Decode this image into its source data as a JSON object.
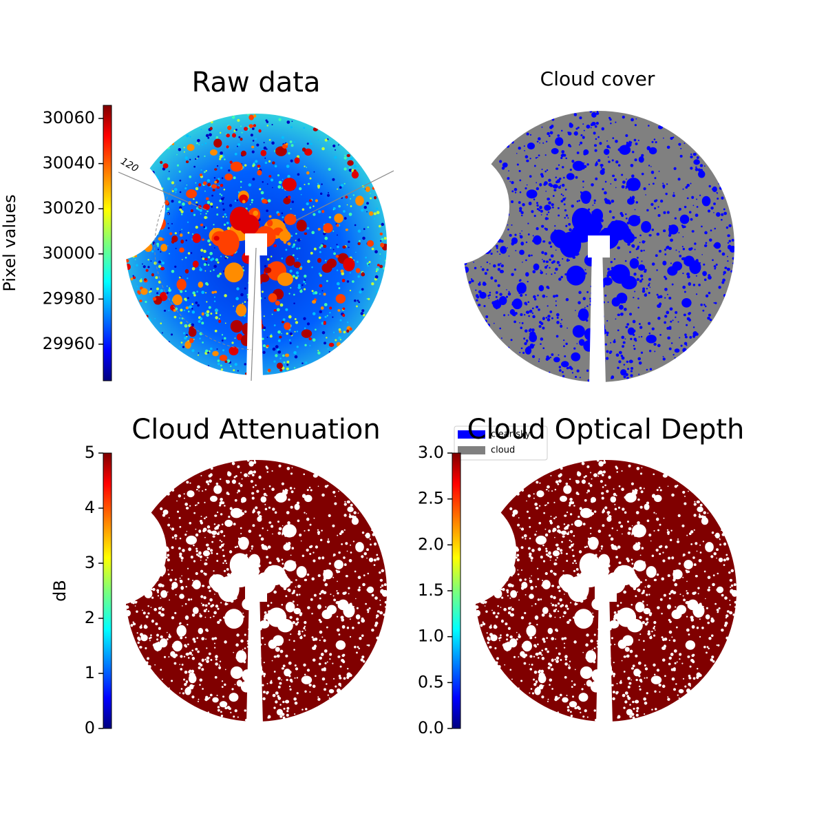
{
  "chart_data": [
    {
      "type": "image",
      "title": "Raw data",
      "colormap": "jet",
      "colorbar_label": "Pixel values",
      "ylim": [
        29943.8,
        30065.8
      ],
      "yticks": [
        29960,
        29980,
        30000,
        30020,
        30040,
        30060
      ],
      "annotation": "120"
    },
    {
      "type": "image",
      "title": "Cloud cover",
      "series": [
        {
          "name": "clear sky",
          "color": "#0000ff"
        },
        {
          "name": "cloud",
          "color": "#808080"
        }
      ]
    },
    {
      "type": "image",
      "title": "Cloud Attenuation",
      "colormap": "jet",
      "colorbar_label": "dB",
      "ylim": [
        0,
        5
      ],
      "yticks": [
        0,
        1,
        2,
        3,
        4,
        5
      ]
    },
    {
      "type": "image",
      "title": "Cloud Optical Depth",
      "colormap": "jet",
      "ylim": [
        0,
        3
      ],
      "yticks": [
        {
          "value": 0,
          "label": "0.0"
        },
        0.5,
        {
          "value": 1,
          "label": "1.0"
        },
        1.5,
        {
          "value": 2,
          "label": "2.0"
        },
        2.5,
        {
          "value": 3,
          "label": "3.0"
        }
      ]
    }
  ]
}
